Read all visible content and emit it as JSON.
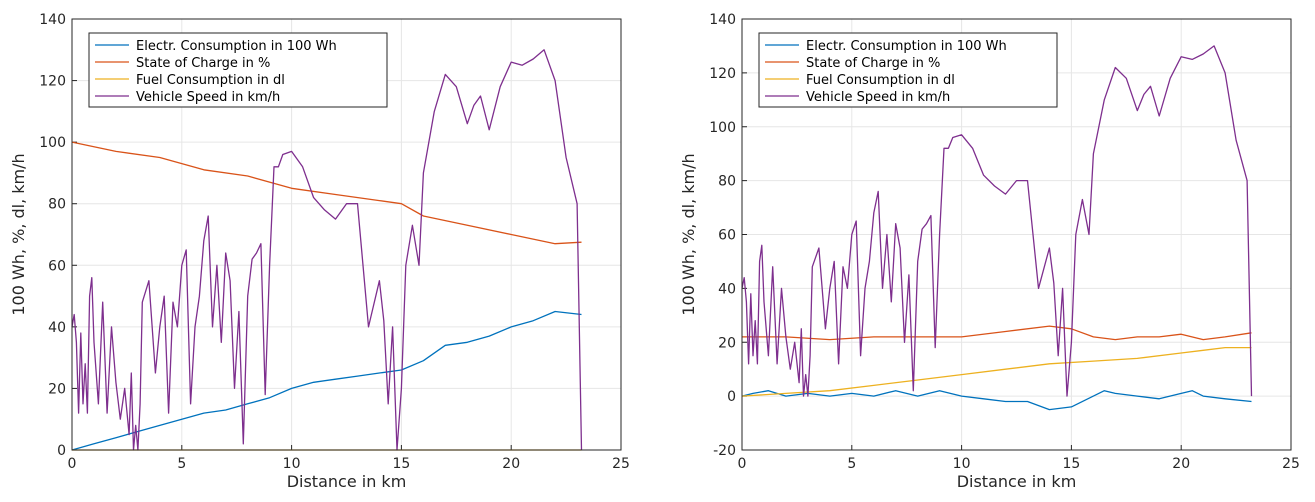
{
  "chart_data": [
    {
      "type": "line",
      "title": "",
      "xlabel": "Distance in km",
      "ylabel": "100 Wh, %, dl, km/h",
      "xlim": [
        0,
        25
      ],
      "ylim": [
        0,
        140
      ],
      "xticks": [
        "0",
        "5",
        "10",
        "15",
        "20",
        "25"
      ],
      "yticks": [
        "0",
        "20",
        "40",
        "60",
        "80",
        "100",
        "120",
        "140"
      ],
      "grid": true,
      "legend": "top-left",
      "series": [
        {
          "name": "Electr. Consumption in 100 Wh",
          "color": "#0072BD",
          "x": [
            0,
            1,
            2,
            3,
            4,
            5,
            6,
            7,
            8,
            9,
            10,
            11,
            12,
            13,
            14,
            15,
            16,
            17,
            18,
            19,
            20,
            21,
            22,
            23.2
          ],
          "y": [
            0,
            2,
            4,
            6,
            8,
            10,
            12,
            13,
            15,
            17,
            20,
            22,
            23,
            24,
            25,
            26,
            29,
            34,
            35,
            37,
            40,
            42,
            45,
            44
          ]
        },
        {
          "name": "State of Charge in %",
          "color": "#D95319",
          "x": [
            0,
            2,
            4,
            6,
            8,
            10,
            12,
            14,
            15,
            16,
            18,
            20,
            22,
            23.2
          ],
          "y": [
            100,
            97,
            95,
            91,
            89,
            85,
            83,
            81,
            80,
            76,
            73,
            70,
            67,
            67.5
          ]
        },
        {
          "name": "Fuel Consumption in dl",
          "color": "#EDB120",
          "x": [
            0,
            23.2
          ],
          "y": [
            0,
            0
          ]
        },
        {
          "name": "Vehicle Speed in km/h",
          "color": "#7E2F8E",
          "x": [
            0,
            0.1,
            0.2,
            0.3,
            0.4,
            0.5,
            0.6,
            0.7,
            0.8,
            0.9,
            1.0,
            1.2,
            1.4,
            1.6,
            1.8,
            2.0,
            2.2,
            2.4,
            2.6,
            2.7,
            2.8,
            2.9,
            3.0,
            3.1,
            3.2,
            3.5,
            3.8,
            4.0,
            4.2,
            4.4,
            4.6,
            4.8,
            5.0,
            5.2,
            5.4,
            5.6,
            5.8,
            6.0,
            6.2,
            6.4,
            6.6,
            6.8,
            7.0,
            7.2,
            7.4,
            7.6,
            7.8,
            8.0,
            8.2,
            8.4,
            8.6,
            8.8,
            9.0,
            9.2,
            9.4,
            9.6,
            10.0,
            10.5,
            11.0,
            11.5,
            12.0,
            12.5,
            13.0,
            13.5,
            14.0,
            14.2,
            14.4,
            14.6,
            14.8,
            15.0,
            15.2,
            15.5,
            15.8,
            16.0,
            16.5,
            17.0,
            17.5,
            18.0,
            18.3,
            18.6,
            19.0,
            19.5,
            20.0,
            20.5,
            21.0,
            21.5,
            22.0,
            22.5,
            23.0,
            23.2
          ],
          "y": [
            40,
            44,
            35,
            12,
            38,
            15,
            28,
            12,
            50,
            56,
            35,
            15,
            48,
            12,
            40,
            22,
            10,
            20,
            5,
            25,
            0,
            8,
            0,
            15,
            48,
            55,
            25,
            40,
            50,
            12,
            48,
            40,
            60,
            65,
            15,
            40,
            50,
            68,
            76,
            40,
            60,
            35,
            64,
            55,
            20,
            45,
            2,
            50,
            62,
            64,
            67,
            18,
            60,
            92,
            92,
            96,
            97,
            92,
            82,
            78,
            75,
            80,
            80,
            40,
            55,
            42,
            15,
            40,
            0,
            20,
            60,
            73,
            60,
            90,
            110,
            122,
            118,
            106,
            112,
            115,
            104,
            118,
            126,
            125,
            127,
            130,
            120,
            95,
            80,
            0
          ]
        }
      ]
    },
    {
      "type": "line",
      "title": "",
      "xlabel": "Distance in km",
      "ylabel": "100 Wh, %, dl, km/h",
      "xlim": [
        0,
        25
      ],
      "ylim": [
        -20,
        140
      ],
      "xticks": [
        "0",
        "5",
        "10",
        "15",
        "20",
        "25"
      ],
      "yticks": [
        "-20",
        "0",
        "20",
        "40",
        "60",
        "80",
        "100",
        "120",
        "140"
      ],
      "grid": true,
      "legend": "top-left",
      "series": [
        {
          "name": "Electr. Consumption in 100 Wh",
          "color": "#0072BD",
          "x": [
            0,
            0.5,
            1.2,
            2,
            3,
            4,
            5,
            6,
            7,
            8,
            9,
            10,
            11,
            12,
            13,
            14,
            15,
            16,
            16.5,
            17,
            18,
            19,
            20,
            20.5,
            21,
            22,
            23.2
          ],
          "y": [
            0,
            1,
            2,
            0,
            1,
            0,
            1,
            0,
            2,
            0,
            2,
            0,
            -1,
            -2,
            -2,
            -5,
            -4,
            0,
            2,
            1,
            0,
            -1,
            1,
            2,
            0,
            -1,
            -2
          ]
        },
        {
          "name": "State of Charge in %",
          "color": "#D95319",
          "x": [
            0,
            2,
            4,
            6,
            8,
            10,
            12,
            14,
            15,
            16,
            17,
            18,
            19,
            20,
            21,
            22,
            23.2
          ],
          "y": [
            22,
            22,
            21,
            22,
            22,
            22,
            24,
            26,
            25,
            22,
            21,
            22,
            22,
            23,
            21,
            22,
            23.5
          ]
        },
        {
          "name": "Fuel Consumption in dl",
          "color": "#EDB120",
          "x": [
            0,
            2,
            4,
            6,
            8,
            10,
            12,
            14,
            16,
            18,
            20,
            21,
            22,
            23.2
          ],
          "y": [
            0,
            1,
            2,
            4,
            6,
            8,
            10,
            12,
            13,
            14,
            16,
            17,
            18,
            18
          ]
        },
        {
          "name": "Vehicle Speed in km/h",
          "color": "#7E2F8E",
          "x": [
            0,
            0.1,
            0.2,
            0.3,
            0.4,
            0.5,
            0.6,
            0.7,
            0.8,
            0.9,
            1.0,
            1.2,
            1.4,
            1.6,
            1.8,
            2.0,
            2.2,
            2.4,
            2.6,
            2.7,
            2.8,
            2.9,
            3.0,
            3.1,
            3.2,
            3.5,
            3.8,
            4.0,
            4.2,
            4.4,
            4.6,
            4.8,
            5.0,
            5.2,
            5.4,
            5.6,
            5.8,
            6.0,
            6.2,
            6.4,
            6.6,
            6.8,
            7.0,
            7.2,
            7.4,
            7.6,
            7.8,
            8.0,
            8.2,
            8.4,
            8.6,
            8.8,
            9.0,
            9.2,
            9.4,
            9.6,
            10.0,
            10.5,
            11.0,
            11.5,
            12.0,
            12.5,
            13.0,
            13.5,
            14.0,
            14.2,
            14.4,
            14.6,
            14.8,
            15.0,
            15.2,
            15.5,
            15.8,
            16.0,
            16.5,
            17.0,
            17.5,
            18.0,
            18.3,
            18.6,
            19.0,
            19.5,
            20.0,
            20.5,
            21.0,
            21.5,
            22.0,
            22.5,
            23.0,
            23.2
          ],
          "y": [
            40,
            44,
            35,
            12,
            38,
            15,
            28,
            12,
            50,
            56,
            35,
            15,
            48,
            12,
            40,
            22,
            10,
            20,
            5,
            25,
            0,
            8,
            0,
            15,
            48,
            55,
            25,
            40,
            50,
            12,
            48,
            40,
            60,
            65,
            15,
            40,
            50,
            68,
            76,
            40,
            60,
            35,
            64,
            55,
            20,
            45,
            2,
            50,
            62,
            64,
            67,
            18,
            60,
            92,
            92,
            96,
            97,
            92,
            82,
            78,
            75,
            80,
            80,
            40,
            55,
            42,
            15,
            40,
            0,
            20,
            60,
            73,
            60,
            90,
            110,
            122,
            118,
            106,
            112,
            115,
            104,
            118,
            126,
            125,
            127,
            130,
            120,
            95,
            80,
            0
          ]
        }
      ]
    }
  ]
}
